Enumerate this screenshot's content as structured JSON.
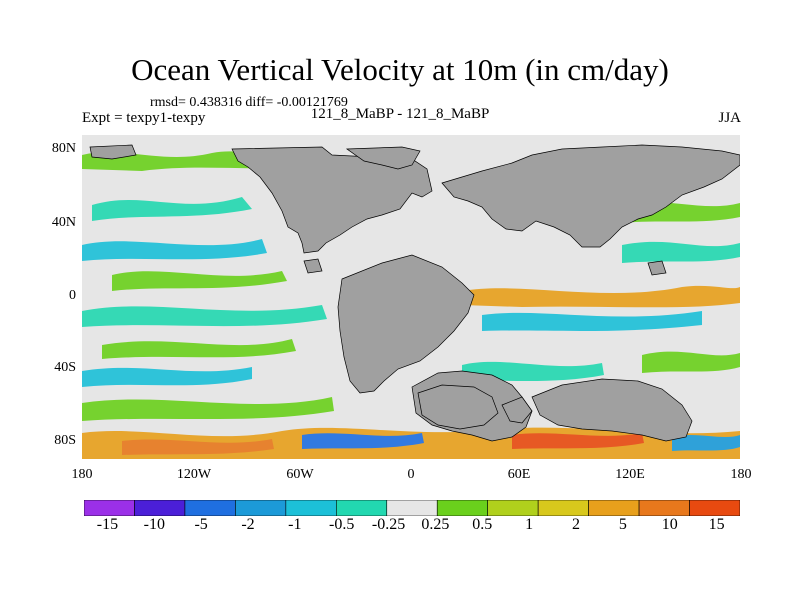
{
  "header": {
    "title": "Ocean Vertical Velocity at 10m (in cm/day)",
    "stats": "rmsd= 0.438316 diff= -0.00121769",
    "expt": "Expt = texpy1-texpy",
    "center_label": "121_8_MaBP - 121_8_MaBP",
    "season": "JJA"
  },
  "map": {
    "lat_labels": [
      "80N",
      "40N",
      "0",
      "40S",
      "80S"
    ],
    "lon_labels": [
      "180",
      "120W",
      "60W",
      "0",
      "60E",
      "120E",
      "180"
    ],
    "land_color": "#a0a0a0",
    "ocean_neutral_color": "#e6e6e6"
  },
  "colorbar": {
    "colors": [
      "#9b30e8",
      "#4b1fd8",
      "#1f6fe0",
      "#1c9ad8",
      "#1cc0d8",
      "#22d8b0",
      "#e6e6e6",
      "#6ad01c",
      "#b0d01c",
      "#d8c81c",
      "#e8a01c",
      "#e8781c",
      "#e84a10"
    ],
    "labels": [
      "-15",
      "-10",
      "-5",
      "-2",
      "-1",
      "-0.5",
      "-0.25",
      "0.25",
      "0.5",
      "1",
      "2",
      "5",
      "10",
      "15"
    ]
  }
}
